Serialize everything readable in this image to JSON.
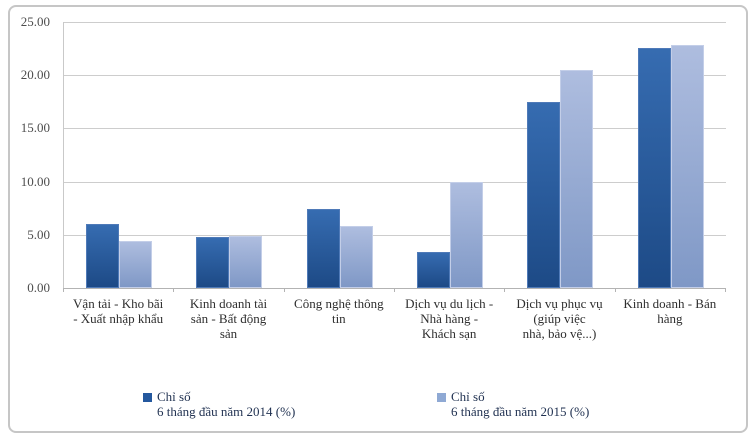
{
  "chart_data": {
    "type": "bar",
    "title": "",
    "xlabel": "",
    "ylabel": "",
    "ylim": [
      0,
      25
    ],
    "ytick_step": 5,
    "grid": true,
    "legend_position": "bottom",
    "yticks": [
      {
        "value": 25,
        "label": "25.00"
      },
      {
        "value": 20,
        "label": "20.00"
      },
      {
        "value": 15,
        "label": "15.00"
      },
      {
        "value": 10,
        "label": "10.00"
      },
      {
        "value": 5,
        "label": "5.00"
      },
      {
        "value": 0,
        "label": "0.00"
      }
    ],
    "categories": [
      {
        "label": "Vận tải - Kho bãi - Xuất nhập khẩu",
        "lines": [
          "Vận tải - Kho bãi",
          "- Xuất nhập khẩu"
        ]
      },
      {
        "label": "Kinh doanh tài sản - Bất động sản",
        "lines": [
          "Kinh doanh tài",
          "sản - Bất động",
          "sản"
        ]
      },
      {
        "label": "Công nghệ thông tin",
        "lines": [
          "Công nghệ thông",
          "tin"
        ]
      },
      {
        "label": "Dịch vụ du lịch - Nhà hàng - Khách sạn",
        "lines": [
          "Dịch vụ du lịch -",
          "Nhà hàng -",
          "Khách sạn"
        ]
      },
      {
        "label": "Dịch vụ phục vụ (giúp việc nhà, bảo vệ...)",
        "lines": [
          "Dịch vụ phục vụ",
          "(giúp việc",
          "nhà, bảo vệ...)"
        ]
      },
      {
        "label": "Kinh doanh - Bán hàng",
        "lines": [
          "Kinh doanh - Bán",
          "hàng"
        ]
      }
    ],
    "series": [
      {
        "name": "Chỉ số 6 tháng đầu năm 2014 (%)",
        "legend_lines": [
          "Chỉ số",
          "6 tháng đầu năm 2014 (%)"
        ],
        "values": [
          6.0,
          4.8,
          7.4,
          3.4,
          17.5,
          22.6
        ],
        "color_top": "#366cb1",
        "color_bottom": "#1d4a86",
        "border_color": "#4f7ab8",
        "marker_color": "#24589e"
      },
      {
        "name": "Chỉ số 6 tháng đầu năm 2015 (%)",
        "legend_lines": [
          "Chỉ số",
          "6 tháng đầu năm 2015 (%)"
        ],
        "values": [
          4.4,
          4.9,
          5.8,
          10.0,
          20.5,
          22.8
        ],
        "color_top": "#aebddf",
        "color_bottom": "#7f98c6",
        "border_color": "#c3cee8",
        "marker_color": "#8fa9d4"
      }
    ]
  },
  "colors": {
    "frame_border": "#c6c6c6",
    "gridline": "#cdcdcd",
    "axis_text": "#4d4d4d",
    "category_text": "#2e2e2e",
    "legend_text": "#1f3050",
    "background": "#ffffff"
  },
  "legend_x_positions": [
    143,
    437
  ]
}
